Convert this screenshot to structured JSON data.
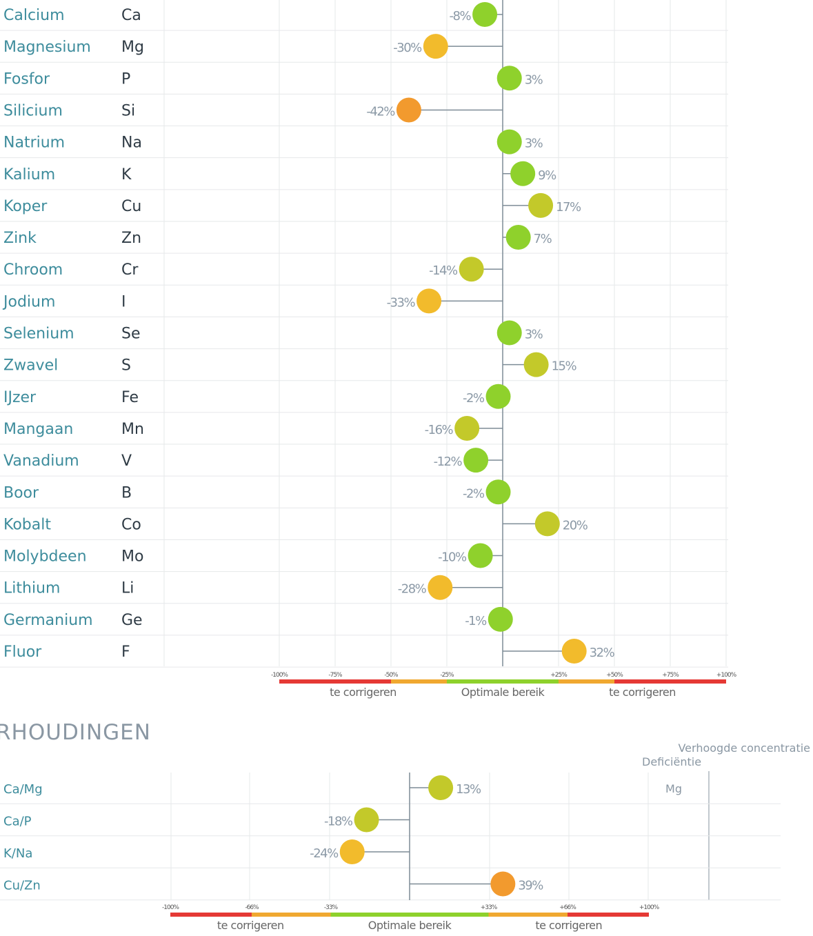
{
  "chart_data": [
    {
      "type": "lollipop",
      "xlim": [
        -100,
        100
      ],
      "unit": "%",
      "ticks": [
        "-100%",
        "-75%",
        "-50%",
        "-25%",
        "+25%",
        "+50%",
        "+75%",
        "+100%"
      ],
      "tick_values": [
        -100,
        -75,
        -50,
        -25,
        25,
        50,
        75,
        100
      ],
      "zones": [
        {
          "from": -100,
          "to": -50,
          "color": "#e53935"
        },
        {
          "from": -50,
          "to": -25,
          "color": "#f0a830"
        },
        {
          "from": -25,
          "to": 25,
          "color": "#8ed12c"
        },
        {
          "from": 25,
          "to": 50,
          "color": "#f0a830"
        },
        {
          "from": 50,
          "to": 100,
          "color": "#e53935"
        }
      ],
      "zone_labels": [
        "te corrigeren",
        "Optimale bereik",
        "te corrigeren"
      ],
      "rows": [
        {
          "name": "Calcium",
          "symbol": "Ca",
          "value": -8,
          "label": "-8%"
        },
        {
          "name": "Magnesium",
          "symbol": "Mg",
          "value": -30,
          "label": "-30%"
        },
        {
          "name": "Fosfor",
          "symbol": "P",
          "value": 3,
          "label": "3%"
        },
        {
          "name": "Silicium",
          "symbol": "Si",
          "value": -42,
          "label": "-42%"
        },
        {
          "name": "Natrium",
          "symbol": "Na",
          "value": 3,
          "label": "3%"
        },
        {
          "name": "Kalium",
          "symbol": "K",
          "value": 9,
          "label": "9%"
        },
        {
          "name": "Koper",
          "symbol": "Cu",
          "value": 17,
          "label": "17%"
        },
        {
          "name": "Zink",
          "symbol": "Zn",
          "value": 7,
          "label": "7%"
        },
        {
          "name": "Chroom",
          "symbol": "Cr",
          "value": -14,
          "label": "-14%"
        },
        {
          "name": "Jodium",
          "symbol": "I",
          "value": -33,
          "label": "-33%"
        },
        {
          "name": "Selenium",
          "symbol": "Se",
          "value": 3,
          "label": "3%"
        },
        {
          "name": "Zwavel",
          "symbol": "S",
          "value": 15,
          "label": "15%"
        },
        {
          "name": "IJzer",
          "symbol": "Fe",
          "value": -2,
          "label": "-2%"
        },
        {
          "name": "Mangaan",
          "symbol": "Mn",
          "value": -16,
          "label": "-16%"
        },
        {
          "name": "Vanadium",
          "symbol": "V",
          "value": -12,
          "label": "-12%"
        },
        {
          "name": "Boor",
          "symbol": "B",
          "value": -2,
          "label": "-2%"
        },
        {
          "name": "Kobalt",
          "symbol": "Co",
          "value": 20,
          "label": "20%"
        },
        {
          "name": "Molybdeen",
          "symbol": "Mo",
          "value": -10,
          "label": "-10%"
        },
        {
          "name": "Lithium",
          "symbol": "Li",
          "value": -28,
          "label": "-28%"
        },
        {
          "name": "Germanium",
          "symbol": "Ge",
          "value": -1,
          "label": "-1%"
        },
        {
          "name": "Fluor",
          "symbol": "F",
          "value": 32,
          "label": "32%"
        }
      ]
    },
    {
      "type": "lollipop",
      "title": "RHOUDINGEN",
      "xlim": [
        -100,
        100
      ],
      "unit": "%",
      "ticks": [
        "-100%",
        "-66%",
        "-33%",
        "+33%",
        "+66%",
        "+100%"
      ],
      "tick_values": [
        -100,
        -66,
        -33,
        33,
        66,
        100
      ],
      "zones": [
        {
          "from": -100,
          "to": -66,
          "color": "#e53935"
        },
        {
          "from": -66,
          "to": -33,
          "color": "#f0a830"
        },
        {
          "from": -33,
          "to": 33,
          "color": "#8ed12c"
        },
        {
          "from": 33,
          "to": 66,
          "color": "#f0a830"
        },
        {
          "from": 66,
          "to": 100,
          "color": "#e53935"
        }
      ],
      "zone_labels": [
        "te corrigeren",
        "Optimale bereik",
        "te corrigeren"
      ],
      "legend": {
        "deficiency": "Deficiëntie",
        "elevated": "Verhoogde concentratie",
        "column_value": "Mg"
      },
      "rows": [
        {
          "name": "Ca/Mg",
          "value": 13,
          "label": "13%"
        },
        {
          "name": "Ca/P",
          "value": -18,
          "label": "-18%"
        },
        {
          "name": "K/Na",
          "value": -24,
          "label": "-24%"
        },
        {
          "name": "Cu/Zn",
          "value": 39,
          "label": "39%"
        }
      ]
    }
  ],
  "dot_colors": {
    "green": "#8fd12c",
    "lime": "#c3c92a",
    "amber": "#f2bb2c",
    "orange": "#f29a2e"
  }
}
